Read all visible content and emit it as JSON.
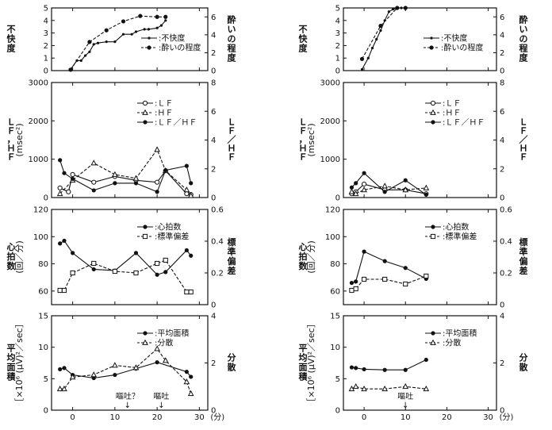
{
  "chart_data": [
    {
      "type": "line",
      "column": 0,
      "row": 0,
      "ylabel_left": "不快度",
      "ylabel_right": "酔いの程度",
      "ylim_left": [
        0,
        5
      ],
      "yticks_left": [
        0,
        1,
        2,
        3,
        4,
        5
      ],
      "ylim_right": [
        0,
        7
      ],
      "yticks_right": [
        0,
        2,
        4,
        6
      ],
      "legend": [
        {
          "label": "不快度",
          "marker": "dot",
          "dash": false
        },
        {
          "label": "酔いの程度",
          "marker": "filled",
          "dash": true
        }
      ],
      "series": [
        {
          "axis": "left",
          "marker": "dot",
          "dash": false,
          "x": [
            -0.5,
            1,
            2,
            3,
            4,
            5,
            6,
            8,
            10,
            12,
            14,
            15,
            17,
            18,
            20,
            21,
            22
          ],
          "y": [
            0.1,
            0.8,
            0.8,
            1.2,
            1.5,
            2.1,
            2.2,
            2.3,
            2.3,
            2.9,
            2.9,
            3.1,
            3.3,
            3.3,
            3.4,
            3.6,
            4.0
          ]
        },
        {
          "axis": "right",
          "marker": "filled",
          "dash": true,
          "x": [
            -0.5,
            4,
            8,
            12,
            16,
            20,
            22
          ],
          "y": [
            0.1,
            3.2,
            4.5,
            5.5,
            6.1,
            6.0,
            6.0
          ]
        }
      ]
    },
    {
      "type": "line",
      "column": 0,
      "row": 1,
      "ylabel_left": "ＬＦ，ＨＦ",
      "ylabel_left_unit": "(msec²)",
      "ylabel_right": "ＬＦ／ＨＦ",
      "ylim_left": [
        0,
        3000
      ],
      "yticks_left": [
        0,
        1000,
        2000,
        3000
      ],
      "yticklabels_left": [
        "0",
        "1000",
        "2000",
        "3000"
      ],
      "ylim_right": [
        0,
        8
      ],
      "yticks_right": [
        0,
        2,
        4,
        6,
        8
      ],
      "legend": [
        {
          "label": "ＬＦ",
          "marker": "open-circle",
          "dash": false
        },
        {
          "label": "ＨＦ",
          "marker": "open-triangle",
          "dash": true
        },
        {
          "label": "ＬＦ／ＨＦ",
          "marker": "filled",
          "dash": false
        }
      ],
      "series": [
        {
          "axis": "left",
          "marker": "open-circle",
          "dash": false,
          "x": [
            -3,
            -1,
            0,
            5,
            10,
            15,
            20,
            22,
            27,
            28
          ],
          "y": [
            250,
            150,
            600,
            400,
            550,
            450,
            400,
            700,
            100,
            80
          ]
        },
        {
          "axis": "left",
          "marker": "open-triangle",
          "dash": true,
          "x": [
            -3,
            0,
            5,
            10,
            15,
            20,
            22,
            27,
            28
          ],
          "y": [
            100,
            450,
            900,
            600,
            500,
            1250,
            700,
            200,
            50
          ]
        },
        {
          "axis": "right",
          "marker": "filled",
          "dash": false,
          "x": [
            -3,
            -2,
            0,
            5,
            10,
            15,
            20,
            22,
            27,
            28
          ],
          "y": [
            2.6,
            1.7,
            1.3,
            0.5,
            1.0,
            1.0,
            0.4,
            1.9,
            2.2,
            1.0
          ]
        }
      ]
    },
    {
      "type": "line",
      "column": 0,
      "row": 2,
      "ylabel_left": "心拍数",
      "ylabel_left_unit": "(回／分)",
      "ylabel_right": "標準偏差",
      "ylim_left": [
        50,
        120
      ],
      "yticks_left": [
        60,
        80,
        100,
        120
      ],
      "ylim_right": [
        0,
        0.6
      ],
      "yticks_right": [
        0,
        0.2,
        0.4,
        0.6
      ],
      "legend": [
        {
          "label": "心拍数",
          "marker": "filled",
          "dash": false
        },
        {
          "label": "標準偏差",
          "marker": "open-square",
          "dash": true
        }
      ],
      "series": [
        {
          "axis": "left",
          "marker": "filled",
          "dash": false,
          "x": [
            -3,
            -2,
            0,
            5,
            10,
            15,
            20,
            22,
            27,
            28
          ],
          "y": [
            95,
            97,
            88,
            76,
            75,
            88,
            72,
            74,
            90,
            86
          ]
        },
        {
          "axis": "right",
          "marker": "open-square",
          "dash": true,
          "x": [
            -3,
            -2,
            0,
            5,
            10,
            15,
            20,
            22,
            27,
            28
          ],
          "y": [
            0.09,
            0.09,
            0.2,
            0.26,
            0.21,
            0.2,
            0.26,
            0.28,
            0.08,
            0.08
          ]
        }
      ]
    },
    {
      "type": "line",
      "column": 0,
      "row": 3,
      "ylabel_left": "平均面積",
      "ylabel_left_unit": "［×10⁶ (μV)²／sec］",
      "ylabel_right": "分散",
      "ylim_left": [
        0,
        15
      ],
      "yticks_left": [
        0,
        5,
        10,
        15
      ],
      "ylim_right": [
        0,
        4
      ],
      "yticks_right": [
        0,
        2,
        4
      ],
      "xlim": [
        -5,
        32
      ],
      "xticks": [
        0,
        10,
        20,
        30
      ],
      "xunit": "(分)",
      "legend": [
        {
          "label": "平均面積",
          "marker": "filled",
          "dash": false
        },
        {
          "label": "分散",
          "marker": "open-triangle",
          "dash": true
        }
      ],
      "series": [
        {
          "axis": "left",
          "marker": "filled",
          "dash": false,
          "x": [
            -3,
            -2,
            0,
            5,
            10,
            15,
            20,
            27,
            28
          ],
          "y": [
            6.5,
            6.7,
            5.6,
            5.1,
            5.6,
            6.6,
            7.6,
            6.1,
            5.3
          ]
        },
        {
          "axis": "right",
          "marker": "open-triangle",
          "dash": true,
          "x": [
            -3,
            -2,
            0,
            5,
            10,
            15,
            20,
            22,
            27,
            28
          ],
          "y": [
            0.9,
            0.9,
            1.4,
            1.5,
            1.9,
            1.8,
            2.6,
            2.1,
            1.2,
            0.7
          ]
        }
      ],
      "annotations": [
        {
          "text": "嘔吐？",
          "x": 13
        },
        {
          "text": "嘔吐",
          "x": 21
        }
      ]
    },
    {
      "type": "line",
      "column": 1,
      "row": 0,
      "ylabel_left": "不快度",
      "ylabel_right": "酔いの程度",
      "ylim_left": [
        0,
        5
      ],
      "yticks_left": [
        0,
        1,
        2,
        3,
        4,
        5
      ],
      "ylim_right": [
        0,
        7
      ],
      "yticks_right": [
        0,
        2,
        4,
        6
      ],
      "legend": [
        {
          "label": "不快度",
          "marker": "dot",
          "dash": false
        },
        {
          "label": "酔いの程度",
          "marker": "filled",
          "dash": true
        }
      ],
      "series": [
        {
          "axis": "left",
          "marker": "dot",
          "dash": false,
          "x": [
            -0.5,
            1,
            2,
            3,
            4,
            5,
            6,
            7,
            8,
            9,
            10
          ],
          "y": [
            0.1,
            1.0,
            1.8,
            2.5,
            3.2,
            4.0,
            4.7,
            4.9,
            5.0,
            5.0,
            5.0
          ]
        },
        {
          "axis": "right",
          "marker": "filled",
          "dash": true,
          "x": [
            -0.5,
            4,
            8,
            10
          ],
          "y": [
            1.3,
            5.0,
            7.0,
            7.0
          ]
        }
      ]
    },
    {
      "type": "line",
      "column": 1,
      "row": 1,
      "ylabel_left": "ＬＦ，ＨＦ",
      "ylabel_left_unit": "(msec²)",
      "ylabel_right": "ＬＦ／ＨＦ",
      "ylim_left": [
        0,
        3000
      ],
      "yticks_left": [
        0,
        1000,
        2000,
        3000
      ],
      "yticklabels_left": [
        "0",
        "1000",
        "2000",
        "3000"
      ],
      "ylim_right": [
        0,
        8
      ],
      "yticks_right": [
        0,
        2,
        4,
        6,
        8
      ],
      "legend": [
        {
          "label": "ＬＦ",
          "marker": "open-circle",
          "dash": false
        },
        {
          "label": "ＨＦ",
          "marker": "open-triangle",
          "dash": true
        },
        {
          "label": "ＬＦ／ＨＦ",
          "marker": "filled",
          "dash": false
        }
      ],
      "series": [
        {
          "axis": "left",
          "marker": "open-circle",
          "dash": false,
          "x": [
            -3,
            -2,
            0,
            5,
            10,
            15
          ],
          "y": [
            100,
            150,
            350,
            200,
            200,
            100
          ]
        },
        {
          "axis": "left",
          "marker": "open-triangle",
          "dash": true,
          "x": [
            -3,
            -2,
            0,
            5,
            10,
            15
          ],
          "y": [
            150,
            100,
            200,
            300,
            200,
            250
          ]
        },
        {
          "axis": "right",
          "marker": "filled",
          "dash": false,
          "x": [
            -3,
            -2,
            0,
            5,
            10,
            15
          ],
          "y": [
            0.7,
            1.0,
            1.7,
            0.4,
            1.2,
            0.2
          ]
        }
      ]
    },
    {
      "type": "line",
      "column": 1,
      "row": 2,
      "ylabel_left": "心拍数",
      "ylabel_left_unit": "(回／分)",
      "ylabel_right": "標準偏差",
      "ylim_left": [
        50,
        120
      ],
      "yticks_left": [
        60,
        80,
        100,
        120
      ],
      "ylim_right": [
        0,
        0.6
      ],
      "yticks_right": [
        0,
        0.2,
        0.4,
        0.6
      ],
      "legend": [
        {
          "label": "心拍数",
          "marker": "filled",
          "dash": false
        },
        {
          "label": "標準偏差",
          "marker": "open-square",
          "dash": true
        }
      ],
      "series": [
        {
          "axis": "left",
          "marker": "filled",
          "dash": false,
          "x": [
            -3,
            -2,
            0,
            5,
            10,
            15
          ],
          "y": [
            66,
            67,
            89,
            82,
            77,
            69
          ]
        },
        {
          "axis": "right",
          "marker": "open-square",
          "dash": true,
          "x": [
            -3,
            -2,
            0,
            5,
            10,
            15
          ],
          "y": [
            0.09,
            0.1,
            0.16,
            0.16,
            0.13,
            0.18
          ]
        }
      ]
    },
    {
      "type": "line",
      "column": 1,
      "row": 3,
      "ylabel_left": "平均面積",
      "ylabel_left_unit": "［×10⁶ (μV)²／sec］",
      "ylabel_right": "分散",
      "ylim_left": [
        0,
        15
      ],
      "yticks_left": [
        0,
        5,
        10,
        15
      ],
      "ylim_right": [
        0,
        4
      ],
      "yticks_right": [
        0,
        2,
        4
      ],
      "xlim": [
        -5,
        32
      ],
      "xticks": [
        0,
        10,
        20,
        30
      ],
      "xunit": "(分)",
      "legend": [
        {
          "label": "平均面積",
          "marker": "filled",
          "dash": false
        },
        {
          "label": "分散",
          "marker": "open-triangle",
          "dash": true
        }
      ],
      "series": [
        {
          "axis": "left",
          "marker": "filled",
          "dash": false,
          "x": [
            -3,
            -2,
            0,
            5,
            10,
            15
          ],
          "y": [
            6.8,
            6.7,
            6.5,
            6.4,
            6.4,
            8.0
          ]
        },
        {
          "axis": "right",
          "marker": "open-triangle",
          "dash": true,
          "x": [
            -3,
            -2,
            0,
            5,
            10,
            15
          ],
          "y": [
            0.9,
            1.0,
            0.9,
            0.9,
            1.0,
            0.9
          ]
        }
      ],
      "annotations": [
        {
          "text": "嘔吐",
          "x": 10
        }
      ]
    }
  ]
}
